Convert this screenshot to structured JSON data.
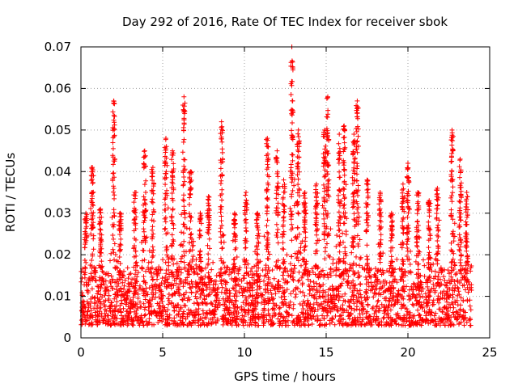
{
  "chart_data": {
    "type": "scatter",
    "title": "Day 292 of 2016, Rate Of TEC Index for receiver sbok",
    "xlabel": "GPS time / hours",
    "ylabel": "ROTI / TECUs",
    "xlim": [
      0,
      25
    ],
    "ylim": [
      0,
      0.07
    ],
    "xticks": [
      0,
      5,
      10,
      15,
      20,
      25
    ],
    "xtick_labels": [
      "0",
      "5",
      "10",
      "15",
      "20",
      "25"
    ],
    "yticks": [
      0,
      0.01,
      0.02,
      0.03,
      0.04,
      0.05,
      0.06,
      0.07
    ],
    "ytick_labels": [
      "0",
      "0.01",
      "0.02",
      "0.03",
      "0.04",
      "0.05",
      "0.06",
      "0.07"
    ],
    "grid": true,
    "marker": "+",
    "color": "#ff0000",
    "series": [
      {
        "name": "ROTI",
        "x_range": [
          0,
          23.9
        ],
        "baseline_typical": 0.009,
        "peaks": [
          {
            "x": 0.3,
            "y": 0.03
          },
          {
            "x": 0.7,
            "y": 0.041
          },
          {
            "x": 1.2,
            "y": 0.031
          },
          {
            "x": 2.0,
            "y": 0.057
          },
          {
            "x": 2.4,
            "y": 0.03
          },
          {
            "x": 3.3,
            "y": 0.035
          },
          {
            "x": 3.9,
            "y": 0.045
          },
          {
            "x": 4.4,
            "y": 0.041
          },
          {
            "x": 5.2,
            "y": 0.048
          },
          {
            "x": 5.6,
            "y": 0.045
          },
          {
            "x": 6.3,
            "y": 0.058
          },
          {
            "x": 6.7,
            "y": 0.04
          },
          {
            "x": 7.3,
            "y": 0.03
          },
          {
            "x": 7.8,
            "y": 0.034
          },
          {
            "x": 8.6,
            "y": 0.052
          },
          {
            "x": 9.4,
            "y": 0.03
          },
          {
            "x": 10.1,
            "y": 0.035
          },
          {
            "x": 10.8,
            "y": 0.03
          },
          {
            "x": 11.4,
            "y": 0.048
          },
          {
            "x": 12.0,
            "y": 0.045
          },
          {
            "x": 12.4,
            "y": 0.038
          },
          {
            "x": 12.9,
            "y": 0.07
          },
          {
            "x": 13.3,
            "y": 0.05
          },
          {
            "x": 13.7,
            "y": 0.035
          },
          {
            "x": 14.4,
            "y": 0.037
          },
          {
            "x": 14.9,
            "y": 0.05
          },
          {
            "x": 15.1,
            "y": 0.058
          },
          {
            "x": 15.8,
            "y": 0.049
          },
          {
            "x": 16.1,
            "y": 0.051
          },
          {
            "x": 16.7,
            "y": 0.049
          },
          {
            "x": 16.9,
            "y": 0.057
          },
          {
            "x": 17.5,
            "y": 0.038
          },
          {
            "x": 18.3,
            "y": 0.035
          },
          {
            "x": 19.0,
            "y": 0.03
          },
          {
            "x": 19.7,
            "y": 0.037
          },
          {
            "x": 20.0,
            "y": 0.042
          },
          {
            "x": 20.6,
            "y": 0.035
          },
          {
            "x": 21.3,
            "y": 0.033
          },
          {
            "x": 21.8,
            "y": 0.036
          },
          {
            "x": 22.7,
            "y": 0.05
          },
          {
            "x": 23.2,
            "y": 0.043
          },
          {
            "x": 23.6,
            "y": 0.035
          }
        ]
      }
    ]
  }
}
